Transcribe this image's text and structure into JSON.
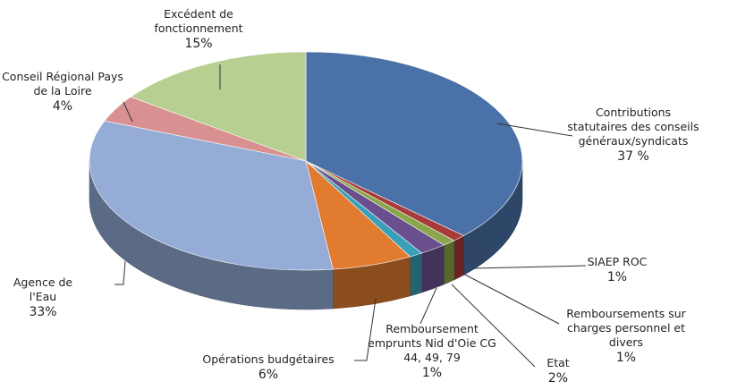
{
  "chart_data": {
    "type": "pie3d",
    "categories": [
      "Contributions statutaires des conseils généraux/syndicats",
      "SIAEP ROC",
      "Remboursements sur charges personnel et divers",
      "Etat",
      "Remboursement emprunts Nid d'Oie CG 44, 49, 79",
      "Opérations budgétaires",
      "Agence de l'Eau",
      "Conseil Régional Pays de la Loire",
      "Excédent de fonctionnement"
    ],
    "values": [
      37,
      1,
      1,
      2,
      1,
      6,
      33,
      4,
      15
    ],
    "value_labels": [
      "37 %",
      "1%",
      "1%",
      "2%",
      "1%",
      "6%",
      "33%",
      "4%",
      "15%"
    ],
    "colors": [
      "#4a72a8",
      "#a83a3a",
      "#8aa64a",
      "#6a4f8e",
      "#3aa0b8",
      "#e07b30",
      "#95acd6",
      "#d89090",
      "#b8cf92"
    ]
  }
}
